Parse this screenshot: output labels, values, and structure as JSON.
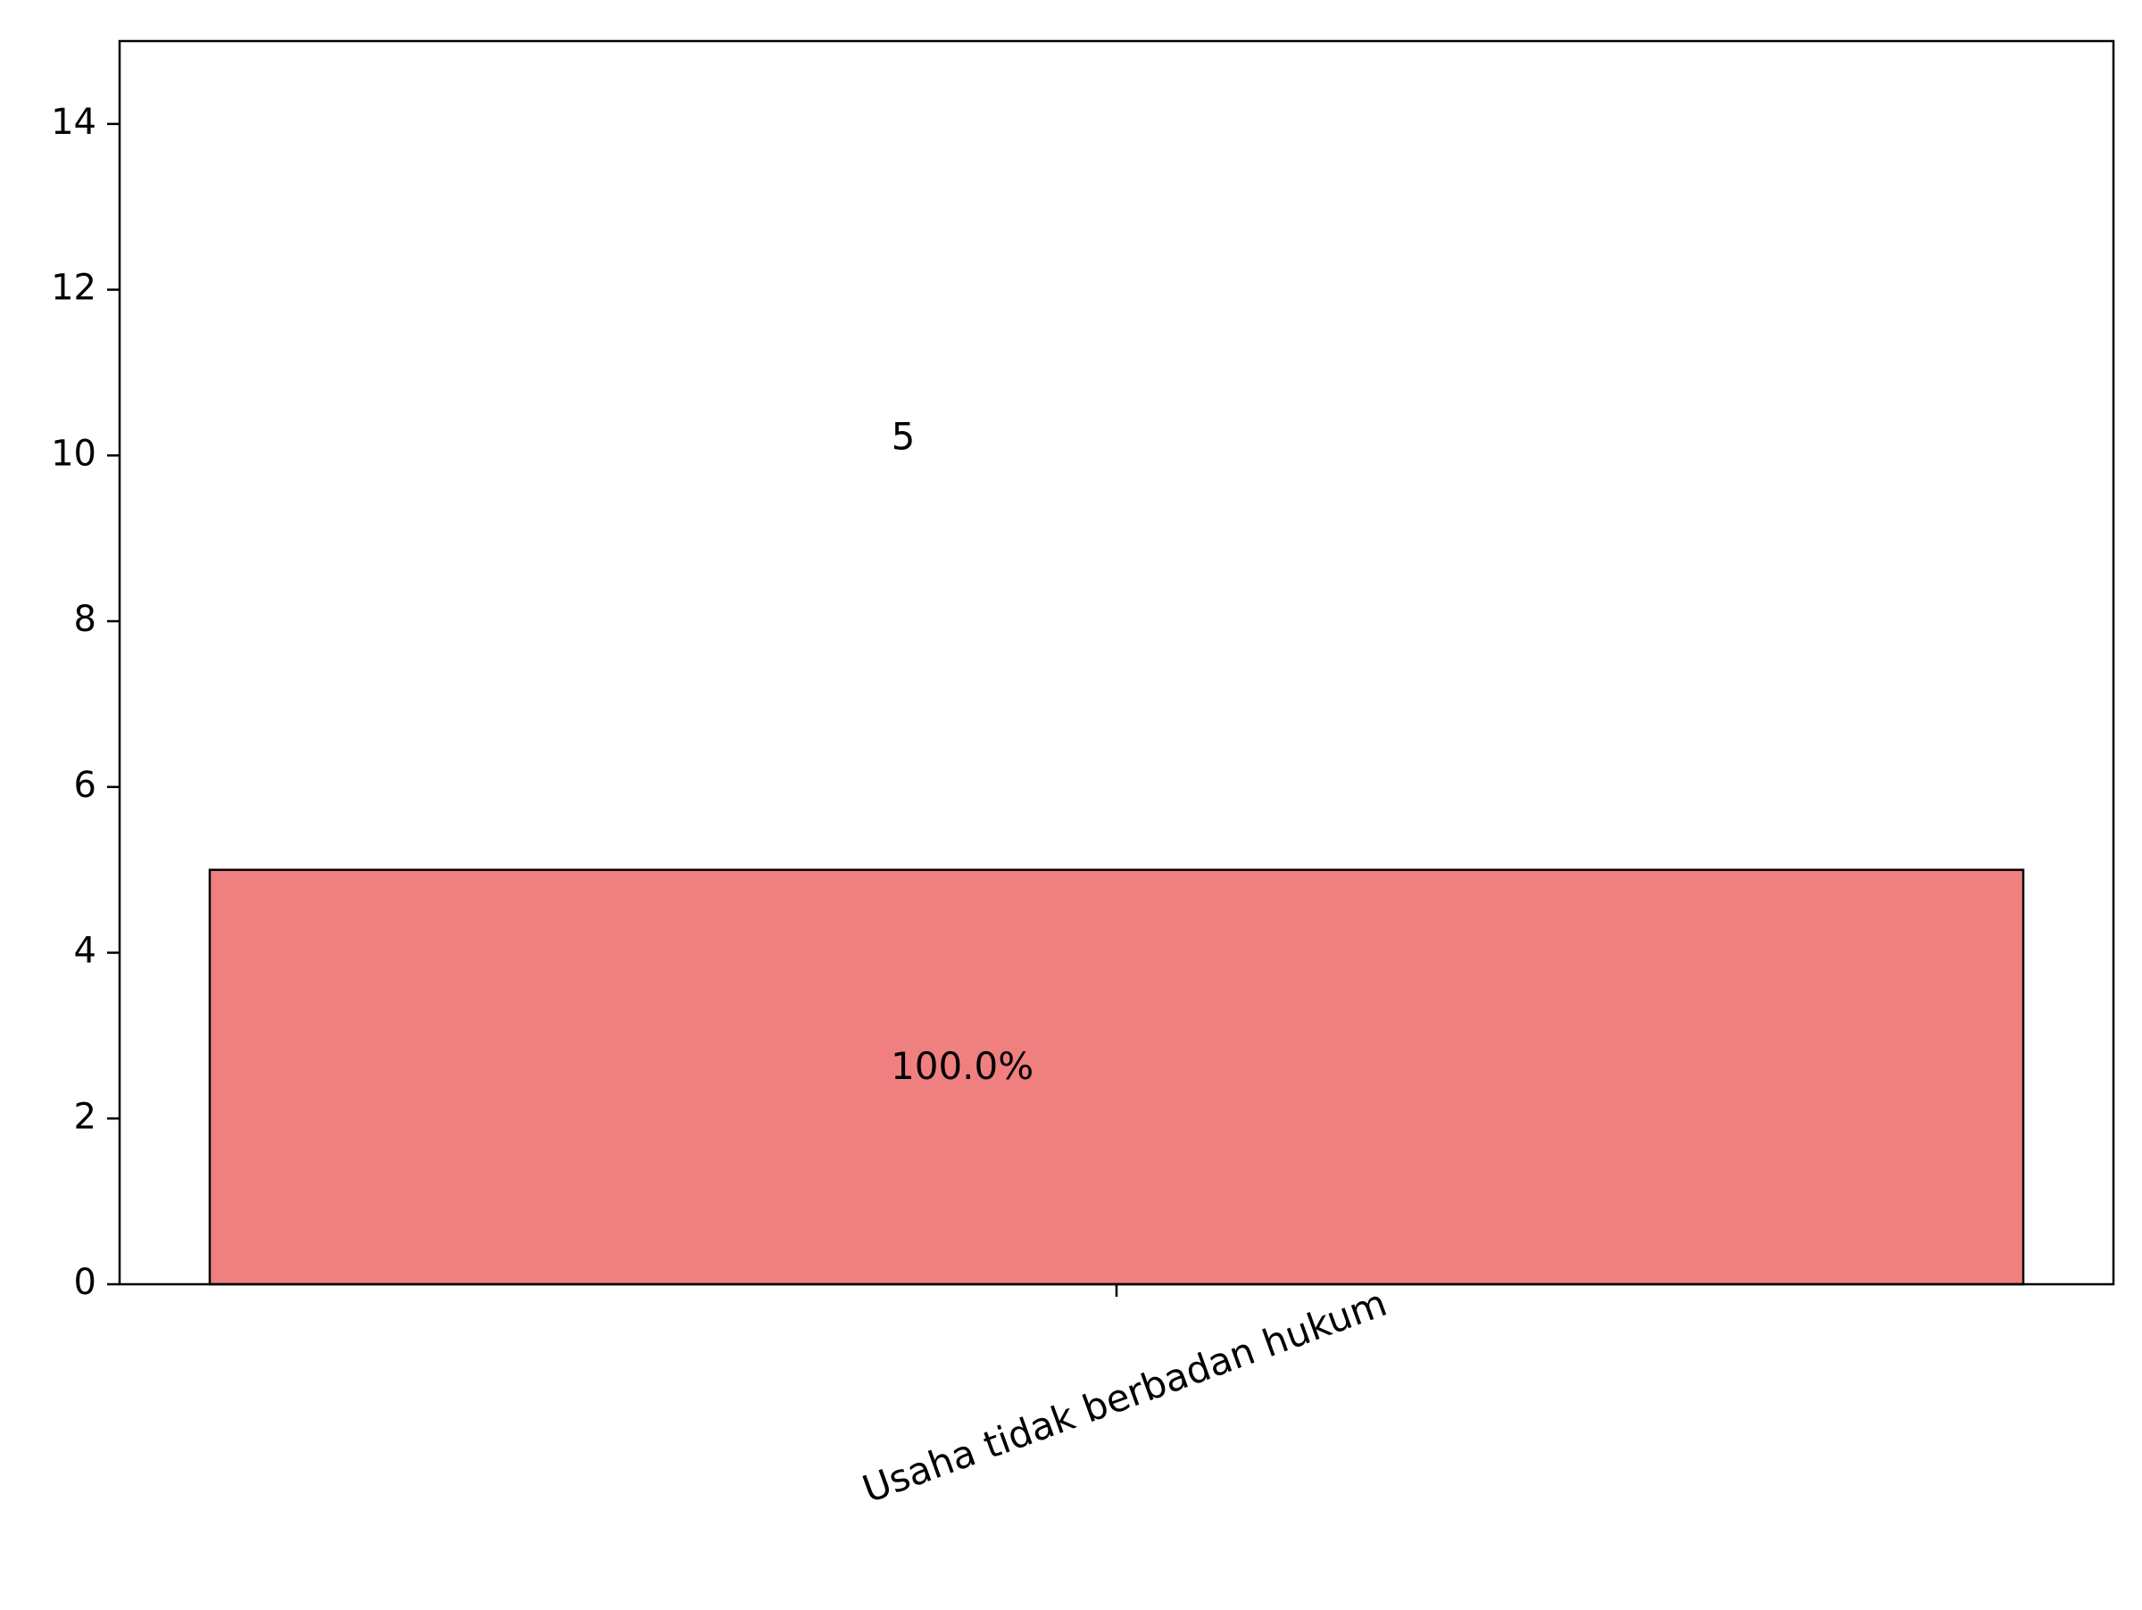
{
  "chart_data": {
    "type": "bar",
    "title": "",
    "xlabel": "",
    "ylabel": "",
    "categories": [
      "Usaha tidak berbadan hukum"
    ],
    "values": [
      5
    ],
    "value_labels": [
      "5"
    ],
    "percent_labels": [
      "100.0%"
    ],
    "ylim": [
      0,
      15
    ],
    "yticks": [
      0,
      2,
      4,
      6,
      8,
      10,
      12,
      14
    ],
    "ytick_labels": [
      "0",
      "2",
      "4",
      "6",
      "8",
      "10",
      "12",
      "14"
    ],
    "bar_color": "#f08080",
    "edge_color": "#000000",
    "grid": false,
    "legend": "none"
  }
}
